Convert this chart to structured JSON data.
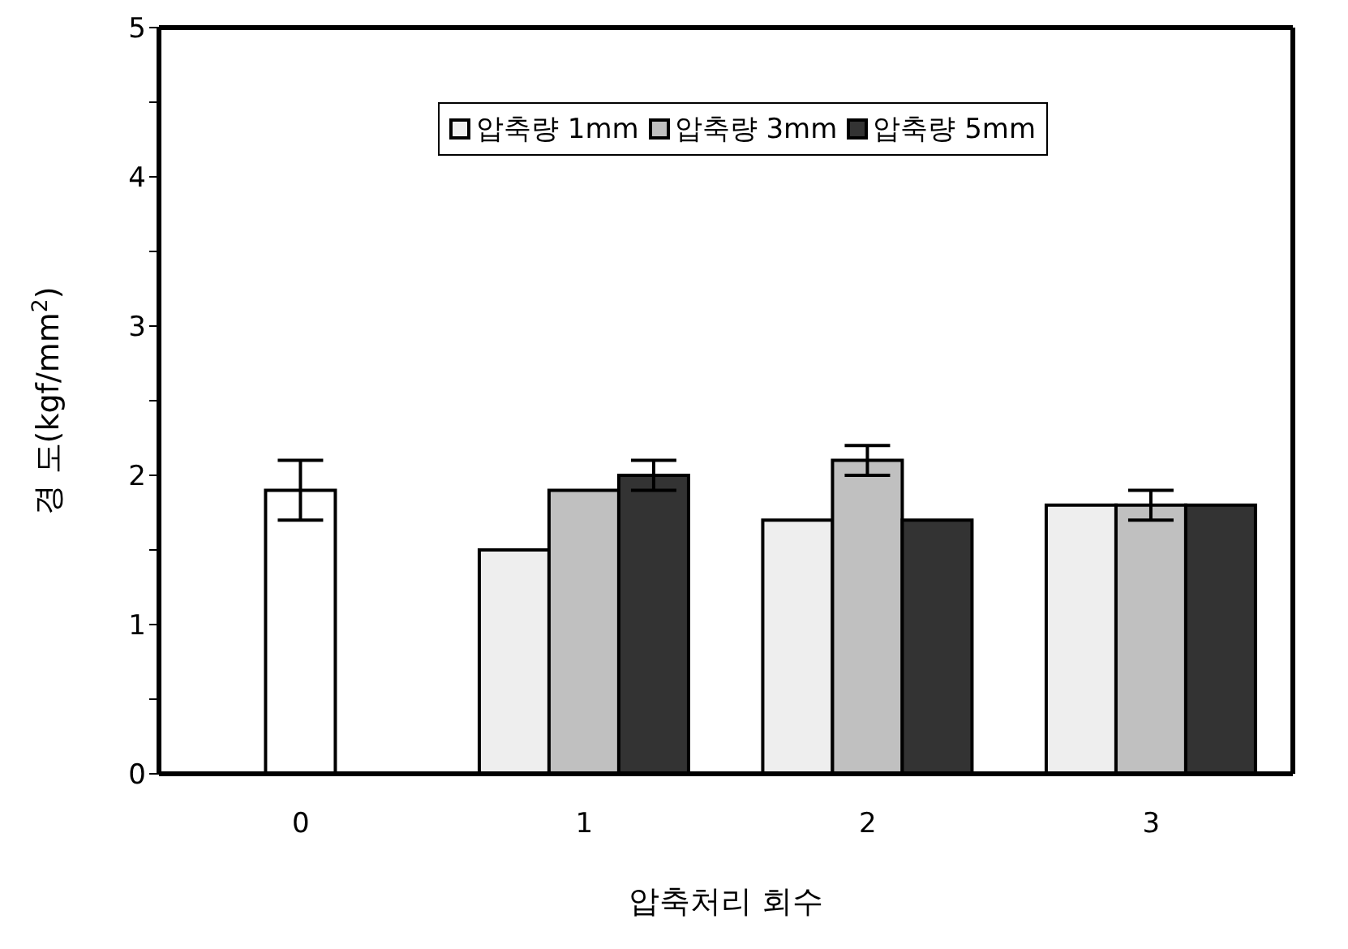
{
  "chart_data": {
    "type": "bar",
    "xlabel": "압축처리 회수",
    "ylabel": "경 도(kgf/mm$^{2}$)",
    "categories": [
      "0",
      "1",
      "2",
      "3"
    ],
    "series": [
      {
        "name": "압축량 1mm",
        "color": "#eeeeee",
        "values": [
          null,
          1.5,
          1.7,
          1.8
        ],
        "errors": [
          null,
          0,
          null,
          0
        ]
      },
      {
        "name": "압축량 3mm",
        "color": "#c0c0c0",
        "colors": [
          "#ffffff",
          "#c0c0c0",
          "#c0c0c0",
          "#c0c0c0"
        ],
        "values": [
          1.9,
          1.9,
          2.1,
          1.8
        ],
        "errors": [
          0.2,
          0,
          0.1,
          0.1
        ]
      },
      {
        "name": "압축량 5mm",
        "color": "#333333",
        "values": [
          null,
          2.0,
          1.7,
          1.8
        ],
        "errors": [
          null,
          0.1,
          null,
          0
        ]
      }
    ],
    "ylim": [
      0,
      5
    ],
    "yticks": [
      0,
      {
        "value": 0.5,
        "label": null
      },
      1,
      {
        "value": 1.5,
        "label": null
      },
      2,
      {
        "value": 2.5,
        "label": null
      },
      3,
      {
        "value": 3.5,
        "label": null
      },
      4,
      {
        "value": 4.5,
        "label": null
      },
      5
    ],
    "grid": false,
    "legend": "top"
  }
}
